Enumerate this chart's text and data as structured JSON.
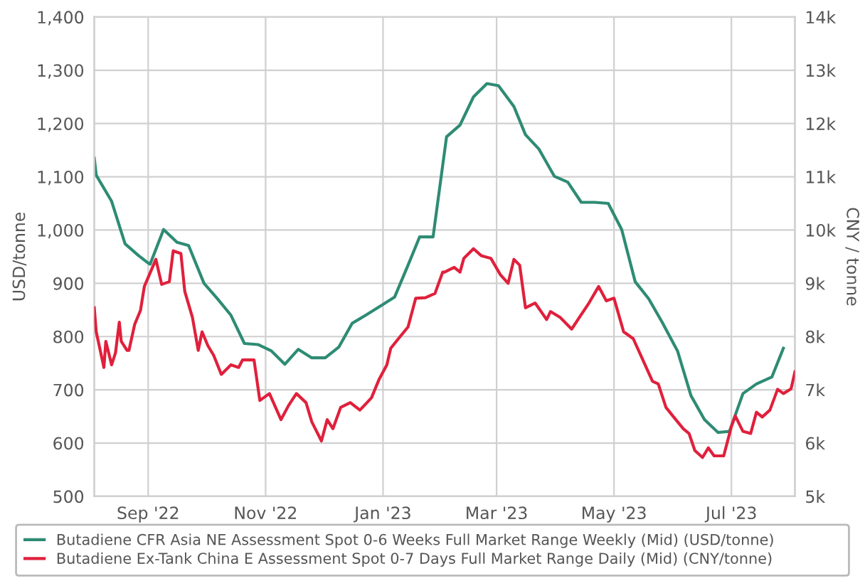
{
  "chart_data": {
    "type": "line",
    "ylabel": "USD/tonne",
    "y2label": "CNY / tonne",
    "xlim": [
      "2022-08-04",
      "2023-08-03"
    ],
    "xticks": [
      {
        "value": "2022-09-01",
        "label": "Sep '22"
      },
      {
        "value": "2022-11-01",
        "label": "Nov '22"
      },
      {
        "value": "2023-01-01",
        "label": "Jan '23"
      },
      {
        "value": "2023-03-01",
        "label": "Mar '23"
      },
      {
        "value": "2023-05-01",
        "label": "May '23"
      },
      {
        "value": "2023-07-01",
        "label": "Jul '23"
      }
    ],
    "ylim": [
      500,
      1400
    ],
    "yticks": [
      {
        "value": 500,
        "label": "500"
      },
      {
        "value": 600,
        "label": "600"
      },
      {
        "value": 700,
        "label": "700"
      },
      {
        "value": 800,
        "label": "800"
      },
      {
        "value": 900,
        "label": "900"
      },
      {
        "value": 1000,
        "label": "1,000"
      },
      {
        "value": 1100,
        "label": "1,100"
      },
      {
        "value": 1200,
        "label": "1,200"
      },
      {
        "value": 1300,
        "label": "1,300"
      },
      {
        "value": 1400,
        "label": "1,400"
      }
    ],
    "y2lim": [
      5000,
      14000
    ],
    "y2ticks": [
      {
        "value": 5000,
        "label": "5k"
      },
      {
        "value": 6000,
        "label": "6k"
      },
      {
        "value": 7000,
        "label": "7k"
      },
      {
        "value": 8000,
        "label": "8k"
      },
      {
        "value": 9000,
        "label": "9k"
      },
      {
        "value": 10000,
        "label": "10k"
      },
      {
        "value": 11000,
        "label": "11k"
      },
      {
        "value": 12000,
        "label": "12k"
      },
      {
        "value": 13000,
        "label": "13k"
      },
      {
        "value": 14000,
        "label": "14k"
      }
    ],
    "grid": true,
    "legend": "bottom",
    "series": [
      {
        "name": "Butadiene CFR Asia NE Assessment Spot 0-6 Weeks Full Market Range Weekly (Mid) (USD/tonne)",
        "color": "#2e8b74",
        "x": [
          "2022-08-04",
          "2022-08-05",
          "2022-08-13",
          "2022-08-20",
          "2022-08-27",
          "2022-09-01",
          "2022-09-02",
          "2022-09-09",
          "2022-09-16",
          "2022-09-22",
          "2022-09-30",
          "2022-10-07",
          "2022-10-14",
          "2022-10-21",
          "2022-10-28",
          "2022-11-04",
          "2022-11-11",
          "2022-11-18",
          "2022-11-25",
          "2022-12-02",
          "2022-12-09",
          "2022-12-16",
          "2022-12-23",
          "2022-12-31",
          "2023-01-07",
          "2023-01-14",
          "2023-01-20",
          "2023-01-27",
          "2023-02-03",
          "2023-02-10",
          "2023-02-17",
          "2023-02-24",
          "2023-03-02",
          "2023-03-10",
          "2023-03-16",
          "2023-03-23",
          "2023-03-31",
          "2023-04-07",
          "2023-04-14",
          "2023-04-21",
          "2023-04-28",
          "2023-05-05",
          "2023-05-12",
          "2023-05-19",
          "2023-05-26",
          "2023-06-03",
          "2023-06-10",
          "2023-06-17",
          "2023-06-24",
          "2023-06-30",
          "2023-07-07",
          "2023-07-14",
          "2023-07-22",
          "2023-07-28"
        ],
        "values": [
          1135,
          1103,
          1054,
          974,
          952,
          938,
          936,
          1001,
          977,
          971,
          900,
          871,
          840,
          787,
          785,
          773,
          748,
          776,
          760,
          760,
          780,
          825,
          840,
          858,
          874,
          934,
          987,
          987,
          1175,
          1197,
          1250,
          1275,
          1271,
          1232,
          1179,
          1152,
          1101,
          1090,
          1052,
          1052,
          1050,
          1001,
          903,
          871,
          827,
          773,
          689,
          644,
          620,
          622,
          693,
          711,
          724,
          778
        ]
      },
      {
        "name": "Butadiene Ex-Tank China E Assessment Spot 0-7 Days Full Market Range Daily (Mid) (CNY/tonne)",
        "color": "#e0203c",
        "axis": "y2",
        "x": [
          "2022-08-04",
          "2022-08-05",
          "2022-08-09",
          "2022-08-10",
          "2022-08-13",
          "2022-08-15",
          "2022-08-17",
          "2022-08-18",
          "2022-08-21",
          "2022-08-22",
          "2022-08-25",
          "2022-08-28",
          "2022-08-30",
          "2022-09-05",
          "2022-09-08",
          "2022-09-12",
          "2022-09-14",
          "2022-09-18",
          "2022-09-20",
          "2022-09-24",
          "2022-09-27",
          "2022-09-29",
          "2022-10-02",
          "2022-10-05",
          "2022-10-09",
          "2022-10-14",
          "2022-10-18",
          "2022-10-20",
          "2022-10-26",
          "2022-10-29",
          "2022-11-03",
          "2022-11-09",
          "2022-11-13",
          "2022-11-17",
          "2022-11-22",
          "2022-11-25",
          "2022-11-30",
          "2022-12-03",
          "2022-12-06",
          "2022-12-10",
          "2022-12-15",
          "2022-12-20",
          "2022-12-26",
          "2022-12-30",
          "2023-01-03",
          "2023-01-05",
          "2023-01-09",
          "2023-01-14",
          "2023-01-18",
          "2023-01-23",
          "2023-01-28",
          "2023-02-01",
          "2023-02-02",
          "2023-02-07",
          "2023-02-10",
          "2023-02-12",
          "2023-02-17",
          "2023-02-21",
          "2023-02-26",
          "2023-03-03",
          "2023-03-07",
          "2023-03-10",
          "2023-03-13",
          "2023-03-16",
          "2023-03-21",
          "2023-03-27",
          "2023-03-29",
          "2023-04-03",
          "2023-04-09",
          "2023-04-13",
          "2023-04-18",
          "2023-04-23",
          "2023-04-27",
          "2023-05-01",
          "2023-05-06",
          "2023-05-11",
          "2023-05-16",
          "2023-05-21",
          "2023-05-24",
          "2023-05-28",
          "2023-06-01",
          "2023-06-06",
          "2023-06-09",
          "2023-06-12",
          "2023-06-16",
          "2023-06-19",
          "2023-06-22",
          "2023-06-27",
          "2023-07-01",
          "2023-07-03",
          "2023-07-07",
          "2023-07-11",
          "2023-07-14",
          "2023-07-17",
          "2023-07-21",
          "2023-07-25",
          "2023-07-28",
          "2023-08-01",
          "2023-08-03"
        ],
        "values": [
          8540,
          8090,
          7420,
          7910,
          7470,
          7690,
          8270,
          7910,
          7740,
          7740,
          8230,
          8490,
          8940,
          9450,
          8980,
          9030,
          9610,
          9560,
          8850,
          8360,
          7740,
          8090,
          7830,
          7650,
          7290,
          7470,
          7420,
          7560,
          7560,
          6800,
          6930,
          6440,
          6710,
          6930,
          6760,
          6400,
          6040,
          6440,
          6270,
          6670,
          6760,
          6620,
          6850,
          7200,
          7470,
          7780,
          7960,
          8180,
          8720,
          8730,
          8810,
          9210,
          9210,
          9300,
          9210,
          9470,
          9650,
          9520,
          9470,
          9160,
          9000,
          9450,
          9340,
          8540,
          8630,
          8320,
          8470,
          8360,
          8140,
          8360,
          8630,
          8940,
          8670,
          8720,
          8090,
          7960,
          7560,
          7160,
          7110,
          6670,
          6490,
          6270,
          6180,
          5860,
          5730,
          5910,
          5760,
          5760,
          6310,
          6510,
          6220,
          6180,
          6580,
          6490,
          6620,
          7010,
          6930,
          7020,
          7340
        ]
      }
    ]
  }
}
